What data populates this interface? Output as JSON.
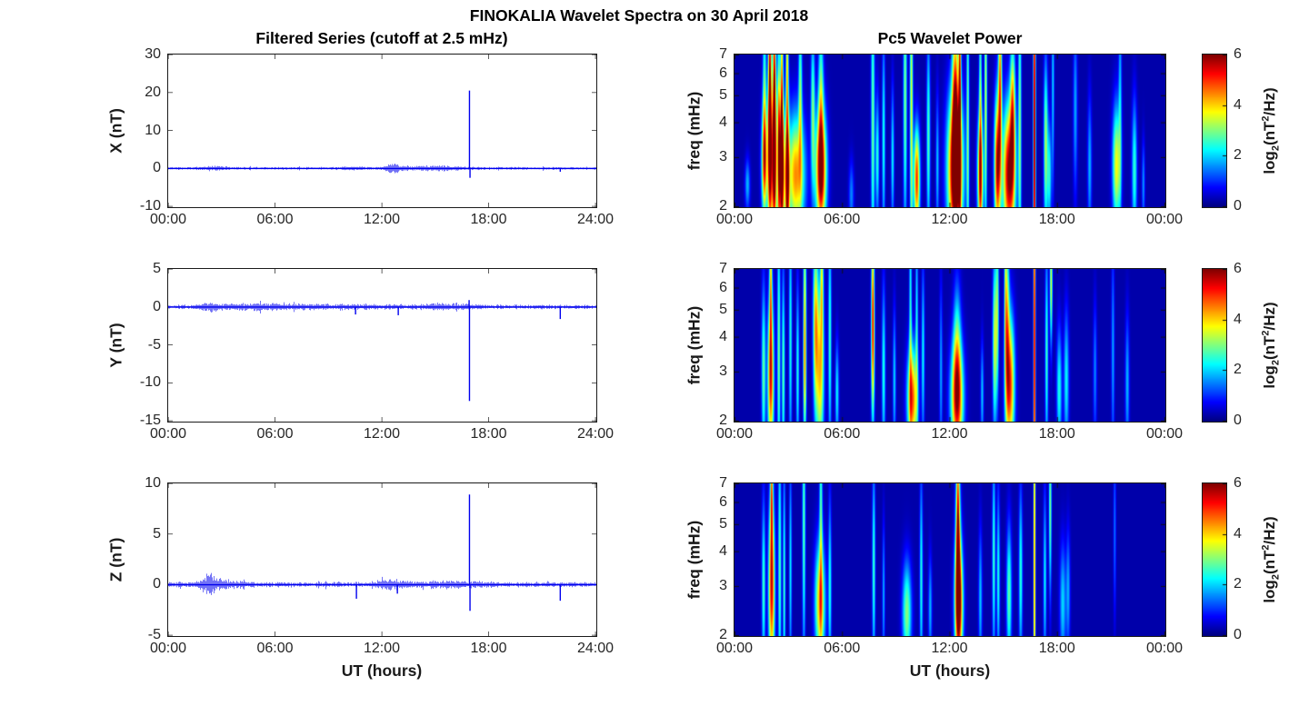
{
  "figure": {
    "title": "FINOKALIA Wavelet Spectra on 30 April 2018",
    "background_color": "#ffffff",
    "axis_color": "#262626",
    "trace_color": "#0000ee"
  },
  "left_column": {
    "title": "Filtered Series (cutoff at 2.5 mHz)",
    "xlabel": "UT (hours)",
    "xtick_hours": [
      0,
      6,
      12,
      18,
      24
    ],
    "xtick_labels": [
      "00:00",
      "06:00",
      "12:00",
      "18:00",
      "24:00"
    ]
  },
  "right_column": {
    "title": "Pc5 Wavelet Power",
    "xlabel": "UT (hours)",
    "ylabel": "freq (mHz)",
    "xtick_hours": [
      0,
      6,
      12,
      18,
      24
    ],
    "xtick_labels": [
      "00:00",
      "06:00",
      "12:00",
      "18:00",
      "00:00"
    ],
    "ytick_values": [
      2,
      3,
      4,
      5,
      6,
      7
    ],
    "freq_scale": "log",
    "colorbar": {
      "min": 0,
      "max": 6,
      "tick_values": [
        0,
        2,
        4,
        6
      ],
      "colormap": "jet",
      "label_pre": "log",
      "label_sub": "2",
      "label_mid": "(nT",
      "label_sup": "2",
      "label_post": "/Hz)"
    }
  },
  "chart_data": [
    {
      "type": "line",
      "component": "X",
      "ylabel": "X (nT)",
      "ylim": [
        -10,
        30
      ],
      "yticks": [
        -10,
        0,
        10,
        20,
        30
      ],
      "xlim_hours": [
        0,
        24
      ],
      "seed": 11,
      "noise_base": 0.28,
      "bursts": [
        {
          "t": 2.6,
          "w": 0.5,
          "a": 0.45
        },
        {
          "t": 10.3,
          "w": 0.5,
          "a": 0.3
        },
        {
          "t": 12.6,
          "w": 0.28,
          "a": 1.15
        },
        {
          "t": 13.9,
          "w": 1.2,
          "a": 0.3
        },
        {
          "t": 15.6,
          "w": 0.9,
          "a": 0.35
        }
      ],
      "spikes": [
        {
          "t": 16.9,
          "v": 20.5
        },
        {
          "t": 16.93,
          "v": -2.5
        },
        {
          "t": 22.0,
          "v": -0.9
        }
      ]
    },
    {
      "type": "heatmap",
      "component": "X",
      "value_label": "log2 wavelet power (nT^2/Hz)",
      "flim_mhz": [
        2,
        7
      ],
      "tlim_hours": [
        0,
        24
      ],
      "background_value": 0.25,
      "vmax": 6,
      "blobs": [
        {
          "t": 0.7,
          "f": 2.4,
          "st": 0.1,
          "sf": 0.15,
          "a": 1.6
        },
        {
          "t": 1.65,
          "f": 2.9,
          "st": 0.12,
          "sf": 0.32,
          "a": 4.2
        },
        {
          "t": 1.65,
          "f": 5.0,
          "st": 0.07,
          "sf": 0.55,
          "a": 2.4
        },
        {
          "t": 1.95,
          "f": 3.0,
          "st": 0.09,
          "sf": 0.5,
          "a": 5.6
        },
        {
          "t": 1.95,
          "f": 6.2,
          "st": 0.06,
          "sf": 0.5,
          "a": 4.0
        },
        {
          "t": 2.2,
          "f": 2.8,
          "st": 0.1,
          "sf": 0.45,
          "a": 6.0
        },
        {
          "t": 2.2,
          "f": 6.0,
          "st": 0.06,
          "sf": 0.5,
          "a": 4.4
        },
        {
          "t": 2.45,
          "f": 3.2,
          "st": 0.06,
          "sf": 0.6,
          "a": 4.6
        },
        {
          "t": 2.62,
          "f": 2.7,
          "st": 0.1,
          "sf": 0.4,
          "a": 5.8
        },
        {
          "t": 2.62,
          "f": 5.5,
          "st": 0.05,
          "sf": 0.6,
          "a": 3.8
        },
        {
          "t": 2.92,
          "f": 2.5,
          "st": 0.08,
          "sf": 0.42,
          "a": 5.4
        },
        {
          "t": 2.92,
          "f": 6.5,
          "st": 0.05,
          "sf": 0.4,
          "a": 3.4
        },
        {
          "t": 3.4,
          "f": 2.6,
          "st": 0.35,
          "sf": 0.35,
          "a": 4.2
        },
        {
          "t": 3.65,
          "f": 5.2,
          "st": 0.07,
          "sf": 0.5,
          "a": 2.6
        },
        {
          "t": 4.35,
          "f": 4.5,
          "st": 0.08,
          "sf": 0.45,
          "a": 2.6
        },
        {
          "t": 4.8,
          "f": 2.7,
          "st": 0.22,
          "sf": 0.35,
          "a": 5.6
        },
        {
          "t": 4.8,
          "f": 4.8,
          "st": 0.1,
          "sf": 0.5,
          "a": 2.6
        },
        {
          "t": 6.5,
          "f": 2.2,
          "st": 0.1,
          "sf": 0.2,
          "a": 1.3
        },
        {
          "t": 7.7,
          "f": 4.0,
          "st": 0.07,
          "sf": 0.9,
          "a": 2.7
        },
        {
          "t": 7.95,
          "f": 3.0,
          "st": 0.07,
          "sf": 0.35,
          "a": 2.3
        },
        {
          "t": 8.3,
          "f": 3.5,
          "st": 0.06,
          "sf": 0.6,
          "a": 2.2
        },
        {
          "t": 8.8,
          "f": 3.0,
          "st": 0.06,
          "sf": 0.4,
          "a": 2.0
        },
        {
          "t": 9.5,
          "f": 5.0,
          "st": 0.07,
          "sf": 0.8,
          "a": 2.8
        },
        {
          "t": 9.85,
          "f": 4.5,
          "st": 0.06,
          "sf": 1.0,
          "a": 3.4
        },
        {
          "t": 10.15,
          "f": 2.5,
          "st": 0.12,
          "sf": 0.3,
          "a": 4.8
        },
        {
          "t": 10.8,
          "f": 3.5,
          "st": 0.07,
          "sf": 0.6,
          "a": 2.5
        },
        {
          "t": 11.3,
          "f": 2.8,
          "st": 0.06,
          "sf": 0.4,
          "a": 1.7
        },
        {
          "t": 12.3,
          "f": 2.7,
          "st": 0.3,
          "sf": 0.45,
          "a": 6.4
        },
        {
          "t": 12.3,
          "f": 4.8,
          "st": 0.12,
          "sf": 0.55,
          "a": 4.0
        },
        {
          "t": 12.55,
          "f": 5.5,
          "st": 0.05,
          "sf": 0.8,
          "a": 4.6
        },
        {
          "t": 13.0,
          "f": 4.0,
          "st": 0.05,
          "sf": 1.0,
          "a": 2.7
        },
        {
          "t": 13.7,
          "f": 2.6,
          "st": 0.12,
          "sf": 0.35,
          "a": 4.7
        },
        {
          "t": 13.7,
          "f": 5.0,
          "st": 0.05,
          "sf": 0.7,
          "a": 2.6
        },
        {
          "t": 14.0,
          "f": 5.0,
          "st": 0.05,
          "sf": 0.8,
          "a": 3.3
        },
        {
          "t": 14.65,
          "f": 2.8,
          "st": 0.12,
          "sf": 0.4,
          "a": 5.4
        },
        {
          "t": 14.8,
          "f": 5.6,
          "st": 0.07,
          "sf": 0.5,
          "a": 4.2
        },
        {
          "t": 15.3,
          "f": 2.6,
          "st": 0.25,
          "sf": 0.4,
          "a": 5.8
        },
        {
          "t": 15.5,
          "f": 4.5,
          "st": 0.1,
          "sf": 0.4,
          "a": 3.6
        },
        {
          "t": 15.9,
          "f": 4.0,
          "st": 0.06,
          "sf": 0.9,
          "a": 2.8
        },
        {
          "t": 16.72,
          "f": 3.5,
          "st": 0.045,
          "sf": 1.5,
          "a": 6.2
        },
        {
          "t": 17.35,
          "f": 3.3,
          "st": 0.08,
          "sf": 0.5,
          "a": 3.0
        },
        {
          "t": 17.55,
          "f": 2.6,
          "st": 0.08,
          "sf": 0.3,
          "a": 2.2
        },
        {
          "t": 17.75,
          "f": 5.5,
          "st": 0.05,
          "sf": 0.6,
          "a": 1.8
        },
        {
          "t": 19.0,
          "f": 4.5,
          "st": 0.08,
          "sf": 0.5,
          "a": 1.5
        },
        {
          "t": 19.8,
          "f": 2.8,
          "st": 0.08,
          "sf": 0.4,
          "a": 1.6
        },
        {
          "t": 21.3,
          "f": 2.8,
          "st": 0.16,
          "sf": 0.35,
          "a": 3.5
        },
        {
          "t": 21.5,
          "f": 5.0,
          "st": 0.06,
          "sf": 0.7,
          "a": 1.6
        },
        {
          "t": 22.3,
          "f": 2.7,
          "st": 0.1,
          "sf": 0.4,
          "a": 2.3
        },
        {
          "t": 22.8,
          "f": 2.4,
          "st": 0.06,
          "sf": 0.25,
          "a": 1.4
        }
      ]
    },
    {
      "type": "line",
      "component": "Y",
      "ylabel": "Y (nT)",
      "ylim": [
        -15,
        5
      ],
      "yticks": [
        -15,
        -10,
        -5,
        0,
        5
      ],
      "xlim_hours": [
        0,
        24
      ],
      "seed": 22,
      "noise_base": 0.22,
      "bursts": [
        {
          "t": 2.3,
          "w": 0.4,
          "a": 0.35
        },
        {
          "t": 4.8,
          "w": 1.5,
          "a": 0.22
        },
        {
          "t": 9.0,
          "w": 3.0,
          "a": 0.15
        },
        {
          "t": 15.8,
          "w": 1.0,
          "a": 0.28
        }
      ],
      "spikes": [
        {
          "t": 16.9,
          "v": -12.4
        },
        {
          "t": 16.88,
          "v": 0.9
        },
        {
          "t": 22.0,
          "v": -1.6
        },
        {
          "t": 10.5,
          "v": -1.0
        },
        {
          "t": 12.9,
          "v": -1.1
        }
      ]
    },
    {
      "type": "heatmap",
      "component": "Y",
      "value_label": "log2 wavelet power (nT^2/Hz)",
      "flim_mhz": [
        2,
        7
      ],
      "tlim_hours": [
        0,
        24
      ],
      "background_value": 0.25,
      "vmax": 6,
      "blobs": [
        {
          "t": 1.6,
          "f": 3.0,
          "st": 0.08,
          "sf": 0.5,
          "a": 2.6
        },
        {
          "t": 2.0,
          "f": 2.9,
          "st": 0.12,
          "sf": 0.45,
          "a": 5.0
        },
        {
          "t": 2.0,
          "f": 6.5,
          "st": 0.05,
          "sf": 0.4,
          "a": 3.2
        },
        {
          "t": 2.45,
          "f": 3.5,
          "st": 0.06,
          "sf": 0.8,
          "a": 2.8
        },
        {
          "t": 2.7,
          "f": 3.0,
          "st": 0.06,
          "sf": 0.6,
          "a": 2.6
        },
        {
          "t": 3.1,
          "f": 4.0,
          "st": 0.06,
          "sf": 0.7,
          "a": 2.2
        },
        {
          "t": 3.5,
          "f": 3.0,
          "st": 0.06,
          "sf": 0.5,
          "a": 2.2
        },
        {
          "t": 3.9,
          "f": 5.5,
          "st": 0.06,
          "sf": 0.6,
          "a": 3.0
        },
        {
          "t": 3.9,
          "f": 2.8,
          "st": 0.06,
          "sf": 0.4,
          "a": 2.4
        },
        {
          "t": 4.5,
          "f": 4.5,
          "st": 0.1,
          "sf": 0.5,
          "a": 3.6
        },
        {
          "t": 4.75,
          "f": 3.0,
          "st": 0.15,
          "sf": 0.5,
          "a": 3.8
        },
        {
          "t": 4.85,
          "f": 6.5,
          "st": 0.06,
          "sf": 0.4,
          "a": 2.8
        },
        {
          "t": 5.3,
          "f": 4.0,
          "st": 0.06,
          "sf": 0.7,
          "a": 2.4
        },
        {
          "t": 5.7,
          "f": 2.5,
          "st": 0.07,
          "sf": 0.3,
          "a": 2.0
        },
        {
          "t": 7.7,
          "f": 3.8,
          "st": 0.07,
          "sf": 0.5,
          "a": 3.6
        },
        {
          "t": 7.7,
          "f": 6.0,
          "st": 0.05,
          "sf": 0.5,
          "a": 2.2
        },
        {
          "t": 8.3,
          "f": 3.0,
          "st": 0.07,
          "sf": 0.5,
          "a": 2.2
        },
        {
          "t": 8.9,
          "f": 2.8,
          "st": 0.06,
          "sf": 0.4,
          "a": 1.8
        },
        {
          "t": 9.9,
          "f": 2.4,
          "st": 0.2,
          "sf": 0.3,
          "a": 4.6
        },
        {
          "t": 9.8,
          "f": 5.0,
          "st": 0.05,
          "sf": 0.7,
          "a": 2.2
        },
        {
          "t": 10.15,
          "f": 4.5,
          "st": 0.05,
          "sf": 0.6,
          "a": 2.0
        },
        {
          "t": 10.5,
          "f": 3.5,
          "st": 0.06,
          "sf": 0.5,
          "a": 2.0
        },
        {
          "t": 11.5,
          "f": 3.0,
          "st": 0.06,
          "sf": 0.5,
          "a": 1.5
        },
        {
          "t": 12.4,
          "f": 2.4,
          "st": 0.25,
          "sf": 0.32,
          "a": 4.8
        },
        {
          "t": 12.4,
          "f": 3.6,
          "st": 0.15,
          "sf": 0.4,
          "a": 2.2
        },
        {
          "t": 13.8,
          "f": 2.5,
          "st": 0.06,
          "sf": 0.3,
          "a": 1.7
        },
        {
          "t": 14.5,
          "f": 3.8,
          "st": 0.08,
          "sf": 0.5,
          "a": 3.2
        },
        {
          "t": 14.65,
          "f": 5.0,
          "st": 0.06,
          "sf": 0.5,
          "a": 2.6
        },
        {
          "t": 15.35,
          "f": 2.7,
          "st": 0.18,
          "sf": 0.4,
          "a": 4.8
        },
        {
          "t": 15.2,
          "f": 4.5,
          "st": 0.08,
          "sf": 0.5,
          "a": 3.0
        },
        {
          "t": 15.1,
          "f": 6.0,
          "st": 0.05,
          "sf": 0.5,
          "a": 2.2
        },
        {
          "t": 16.72,
          "f": 3.5,
          "st": 0.04,
          "sf": 1.5,
          "a": 5.8
        },
        {
          "t": 17.4,
          "f": 3.5,
          "st": 0.06,
          "sf": 0.6,
          "a": 2.4
        },
        {
          "t": 17.65,
          "f": 6.3,
          "st": 0.05,
          "sf": 0.35,
          "a": 3.4
        },
        {
          "t": 18.1,
          "f": 2.6,
          "st": 0.1,
          "sf": 0.35,
          "a": 2.2
        },
        {
          "t": 18.5,
          "f": 2.8,
          "st": 0.1,
          "sf": 0.4,
          "a": 2.0
        },
        {
          "t": 20.1,
          "f": 3.0,
          "st": 0.07,
          "sf": 0.4,
          "a": 1.3
        },
        {
          "t": 21.1,
          "f": 3.5,
          "st": 0.06,
          "sf": 0.6,
          "a": 1.5
        },
        {
          "t": 21.9,
          "f": 2.7,
          "st": 0.08,
          "sf": 0.4,
          "a": 1.6
        }
      ]
    },
    {
      "type": "line",
      "component": "Z",
      "ylabel": "Z (nT)",
      "ylim": [
        -5,
        10
      ],
      "yticks": [
        -5,
        0,
        5,
        10
      ],
      "xlim_hours": [
        0,
        24
      ],
      "seed": 33,
      "noise_base": 0.2,
      "bursts": [
        {
          "t": 2.25,
          "w": 0.25,
          "a": 0.72
        },
        {
          "t": 3.0,
          "w": 0.8,
          "a": 0.28
        },
        {
          "t": 12.6,
          "w": 0.6,
          "a": 0.32
        },
        {
          "t": 15.9,
          "w": 1.2,
          "a": 0.22
        }
      ],
      "spikes": [
        {
          "t": 16.9,
          "v": 8.9
        },
        {
          "t": 16.93,
          "v": -2.6
        },
        {
          "t": 10.55,
          "v": -1.4
        },
        {
          "t": 12.85,
          "v": -0.9
        },
        {
          "t": 22.0,
          "v": -1.6
        }
      ]
    },
    {
      "type": "heatmap",
      "component": "Z",
      "value_label": "log2 wavelet power (nT^2/Hz)",
      "flim_mhz": [
        2,
        7
      ],
      "tlim_hours": [
        0,
        24
      ],
      "background_value": 0.25,
      "vmax": 6,
      "blobs": [
        {
          "t": 1.6,
          "f": 3.0,
          "st": 0.07,
          "sf": 0.5,
          "a": 2.4
        },
        {
          "t": 2.05,
          "f": 3.0,
          "st": 0.12,
          "sf": 0.5,
          "a": 5.2
        },
        {
          "t": 2.05,
          "f": 6.8,
          "st": 0.05,
          "sf": 0.35,
          "a": 3.4
        },
        {
          "t": 2.5,
          "f": 3.5,
          "st": 0.06,
          "sf": 0.8,
          "a": 2.6
        },
        {
          "t": 2.75,
          "f": 3.0,
          "st": 0.05,
          "sf": 0.7,
          "a": 2.4
        },
        {
          "t": 3.1,
          "f": 3.5,
          "st": 0.05,
          "sf": 0.6,
          "a": 2.0
        },
        {
          "t": 3.85,
          "f": 5.0,
          "st": 0.06,
          "sf": 0.8,
          "a": 2.6
        },
        {
          "t": 4.75,
          "f": 2.6,
          "st": 0.2,
          "sf": 0.35,
          "a": 3.9
        },
        {
          "t": 4.8,
          "f": 5.5,
          "st": 0.06,
          "sf": 0.7,
          "a": 2.4
        },
        {
          "t": 5.3,
          "f": 3.0,
          "st": 0.06,
          "sf": 0.5,
          "a": 2.2
        },
        {
          "t": 7.75,
          "f": 3.5,
          "st": 0.06,
          "sf": 0.6,
          "a": 2.4
        },
        {
          "t": 8.3,
          "f": 2.8,
          "st": 0.05,
          "sf": 0.4,
          "a": 1.6
        },
        {
          "t": 9.6,
          "f": 2.4,
          "st": 0.18,
          "sf": 0.3,
          "a": 2.8
        },
        {
          "t": 10.4,
          "f": 3.2,
          "st": 0.06,
          "sf": 0.6,
          "a": 2.2
        },
        {
          "t": 10.9,
          "f": 2.5,
          "st": 0.07,
          "sf": 0.3,
          "a": 1.6
        },
        {
          "t": 12.5,
          "f": 2.6,
          "st": 0.16,
          "sf": 0.35,
          "a": 5.6
        },
        {
          "t": 12.45,
          "f": 4.2,
          "st": 0.1,
          "sf": 0.5,
          "a": 3.4
        },
        {
          "t": 12.45,
          "f": 6.0,
          "st": 0.06,
          "sf": 0.5,
          "a": 2.4
        },
        {
          "t": 13.7,
          "f": 2.7,
          "st": 0.07,
          "sf": 0.4,
          "a": 1.7
        },
        {
          "t": 14.45,
          "f": 3.8,
          "st": 0.06,
          "sf": 0.6,
          "a": 2.4
        },
        {
          "t": 14.7,
          "f": 3.2,
          "st": 0.06,
          "sf": 0.5,
          "a": 2.2
        },
        {
          "t": 15.3,
          "f": 2.8,
          "st": 0.1,
          "sf": 0.4,
          "a": 2.6
        },
        {
          "t": 15.95,
          "f": 3.3,
          "st": 0.07,
          "sf": 0.5,
          "a": 2.3
        },
        {
          "t": 16.72,
          "f": 3.5,
          "st": 0.04,
          "sf": 1.5,
          "a": 4.4
        },
        {
          "t": 17.3,
          "f": 3.2,
          "st": 0.06,
          "sf": 0.5,
          "a": 2.0
        },
        {
          "t": 17.6,
          "f": 5.8,
          "st": 0.05,
          "sf": 0.5,
          "a": 2.8
        },
        {
          "t": 18.3,
          "f": 2.6,
          "st": 0.12,
          "sf": 0.35,
          "a": 1.8
        },
        {
          "t": 18.6,
          "f": 2.9,
          "st": 0.08,
          "sf": 0.35,
          "a": 1.5
        },
        {
          "t": 21.2,
          "f": 4.8,
          "st": 0.05,
          "sf": 0.5,
          "a": 1.2
        }
      ]
    }
  ]
}
